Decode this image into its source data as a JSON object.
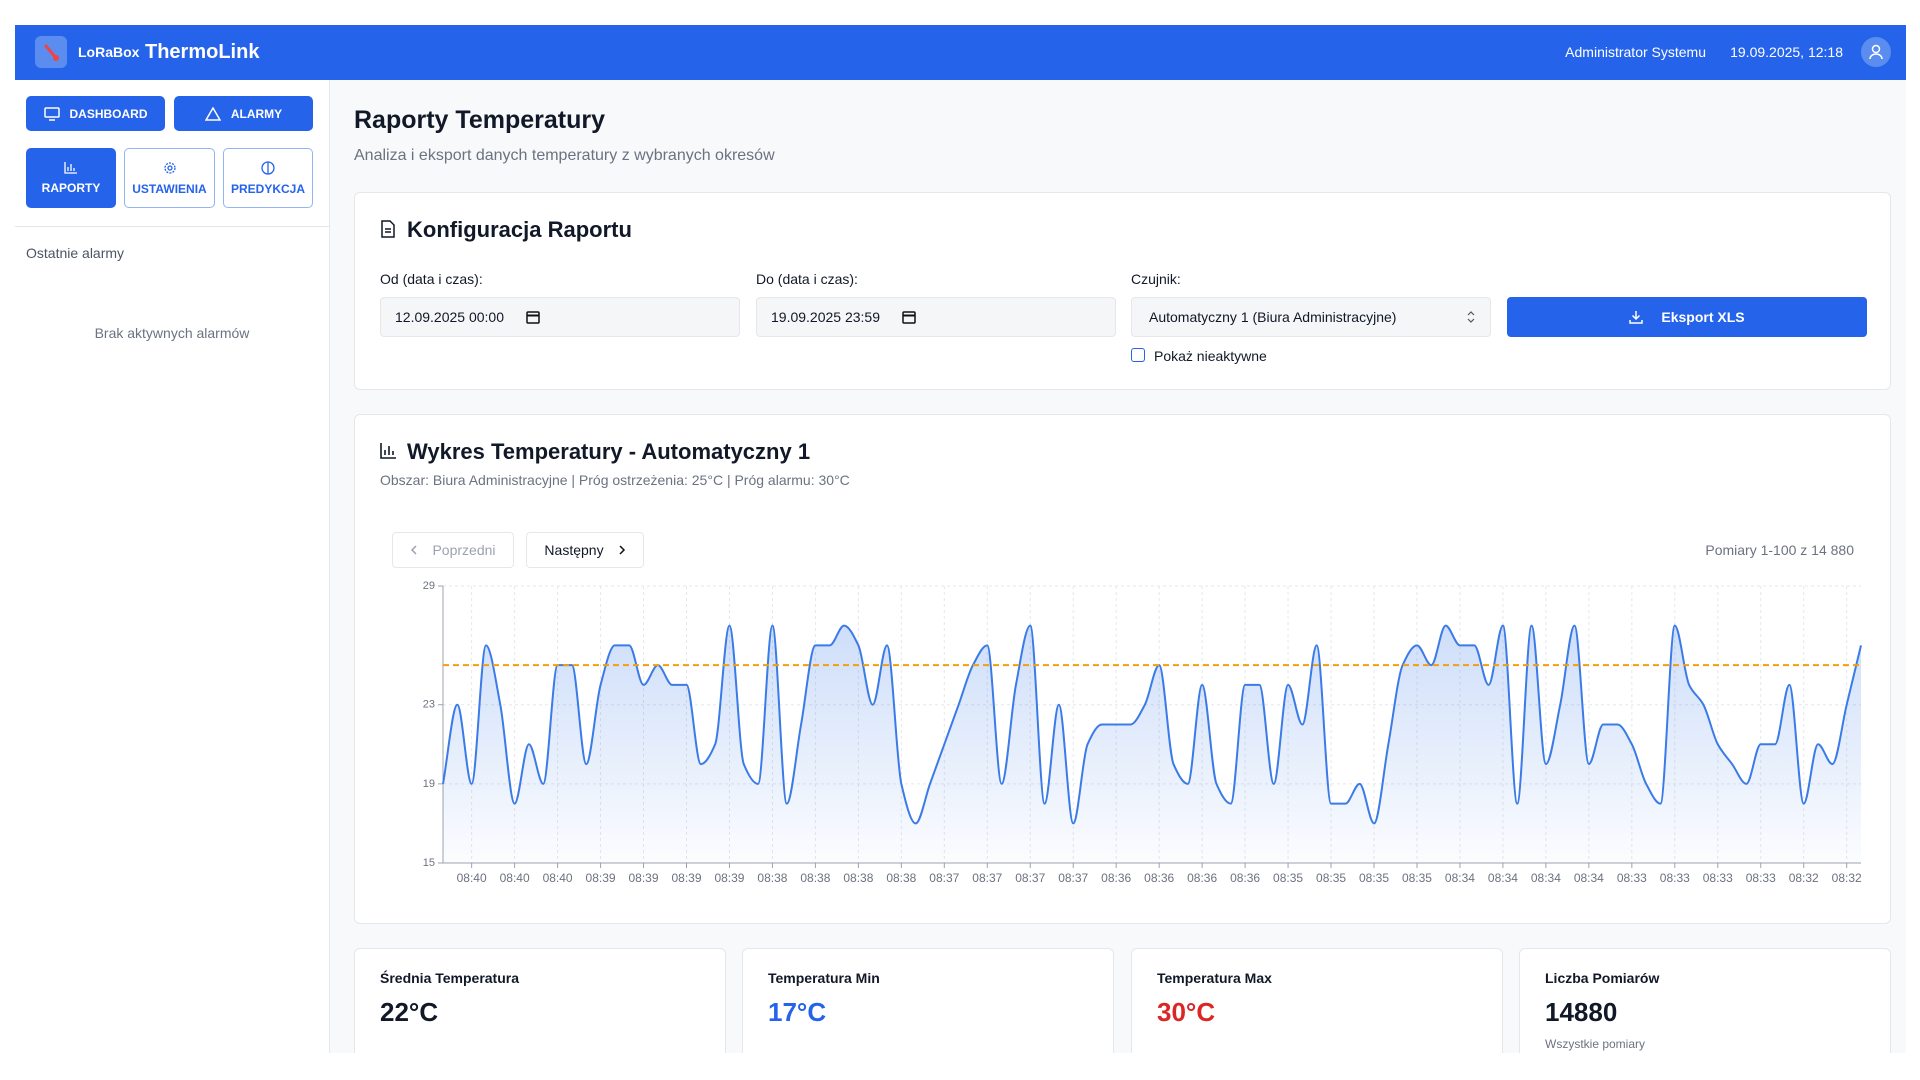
{
  "header": {
    "brand_small": "LoRaBox",
    "brand": "ThermoLink",
    "user": "Administrator Systemu",
    "datetime": "19.09.2025, 12:18"
  },
  "sidebar": {
    "nav": [
      "DASHBOARD",
      "ALARMY",
      "RAPORTY",
      "USTAWIENIA",
      "PREDYKCJA"
    ],
    "recent_alarms_title": "Ostatnie alarmy",
    "no_alarms": "Brak aktywnych alarmów"
  },
  "page": {
    "title": "Raporty Temperatury",
    "subtitle": "Analiza i eksport danych temperatury z wybranych okresów"
  },
  "config": {
    "title": "Konfiguracja Raportu",
    "from_label": "Od (data i czas):",
    "from_value": "12.09.2025 00:00",
    "to_label": "Do (data i czas):",
    "to_value": "19.09.2025 23:59",
    "sensor_label": "Czujnik:",
    "sensor_value": "Automatyczny 1 (Biura Administracyjne)",
    "export": "Eksport XLS",
    "show_inactive": "Pokaż nieaktywne"
  },
  "chart_nav": {
    "prev": "Poprzedni",
    "next": "Następny",
    "range": "Pomiary 1-100 z 14 880"
  },
  "chart_data": {
    "type": "line",
    "title": "Wykres Temperatury - Automatyczny 1",
    "subtitle": "Obszar: Biura Administracyjne | Próg ostrzeżenia: 25°C | Próg alarmu: 30°C",
    "categories": [
      null,
      null,
      "08:40",
      null,
      null,
      "08:40",
      null,
      null,
      "08:40",
      null,
      null,
      "08:39",
      null,
      null,
      "08:39",
      null,
      null,
      "08:39",
      null,
      null,
      "08:39",
      null,
      null,
      "08:38",
      null,
      null,
      "08:38",
      null,
      null,
      "08:38",
      null,
      null,
      "08:38",
      null,
      null,
      "08:37",
      null,
      null,
      "08:37",
      null,
      null,
      "08:37",
      null,
      null,
      "08:37",
      null,
      null,
      "08:36",
      null,
      null,
      "08:36",
      null,
      null,
      "08:36",
      null,
      null,
      "08:36",
      null,
      null,
      "08:35",
      null,
      null,
      "08:35",
      null,
      null,
      "08:35",
      null,
      null,
      "08:35",
      null,
      null,
      "08:34",
      null,
      null,
      "08:34",
      null,
      null,
      "08:34",
      null,
      null,
      "08:34",
      null,
      null,
      "08:33",
      null,
      null,
      "08:33",
      null,
      null,
      "08:33",
      null,
      null,
      "08:33",
      null,
      null,
      "08:32",
      null,
      null,
      "08:32",
      null
    ],
    "values": [
      19,
      23,
      19,
      26,
      23,
      18,
      21,
      19,
      25,
      25,
      20,
      24,
      26,
      26,
      24,
      25,
      24,
      24,
      20,
      21,
      27,
      20,
      19,
      27,
      18,
      22,
      26,
      26,
      27,
      26,
      23,
      26,
      19,
      17,
      19,
      21,
      23,
      25,
      26,
      19,
      24,
      27,
      18,
      23,
      17,
      21,
      22,
      22,
      22,
      23,
      25,
      20,
      19,
      24,
      19,
      18,
      24,
      24,
      19,
      24,
      22,
      26,
      18,
      18,
      19,
      17,
      21,
      25,
      26,
      25,
      27,
      26,
      26,
      24,
      27,
      18,
      27,
      20,
      23,
      27,
      20,
      22,
      22,
      21,
      19,
      18,
      27,
      24,
      23,
      21,
      20,
      19,
      21,
      21,
      24,
      18,
      21,
      20,
      23,
      26
    ],
    "color": "#3b7be8",
    "area": true,
    "ylim": [
      15,
      29
    ],
    "yticks": [
      15,
      19,
      23,
      29
    ],
    "grid": true,
    "threshold": 25,
    "threshold_color": "#f59e0b"
  },
  "stats": [
    {
      "label": "Średnia Temperatura",
      "value": "22°C"
    },
    {
      "label": "Temperatura Min",
      "value": "17°C"
    },
    {
      "label": "Temperatura Max",
      "value": "30°C"
    },
    {
      "label": "Liczba Pomiarów",
      "value": "14880",
      "note": "Wszystkie pomiary"
    }
  ]
}
